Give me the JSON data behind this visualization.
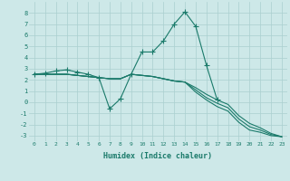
{
  "xlabel": "Humidex (Indice chaleur)",
  "x": [
    0,
    1,
    2,
    3,
    4,
    5,
    6,
    7,
    8,
    9,
    10,
    11,
    12,
    13,
    14,
    15,
    16,
    17,
    18,
    19,
    20,
    21,
    22,
    23
  ],
  "line1": [
    2.5,
    2.6,
    2.8,
    2.9,
    2.7,
    2.5,
    2.2,
    -0.6,
    0.3,
    2.5,
    4.5,
    4.5,
    5.5,
    7.0,
    8.1,
    6.8,
    3.3,
    0.2,
    null,
    null,
    null,
    null,
    null,
    null
  ],
  "line2": [
    2.5,
    2.5,
    2.5,
    2.5,
    2.4,
    2.3,
    2.2,
    2.1,
    2.1,
    2.5,
    2.4,
    2.3,
    2.1,
    1.9,
    1.8,
    1.3,
    0.7,
    0.2,
    -0.2,
    -1.2,
    -1.9,
    -2.3,
    -2.8,
    -3.1
  ],
  "line3": [
    2.5,
    2.5,
    2.5,
    2.5,
    2.4,
    2.3,
    2.2,
    2.1,
    2.1,
    2.5,
    2.4,
    2.3,
    2.1,
    1.9,
    1.8,
    1.1,
    0.4,
    -0.1,
    -0.5,
    -1.5,
    -2.2,
    -2.5,
    -2.9,
    -3.1
  ],
  "line4": [
    2.5,
    2.5,
    2.5,
    2.5,
    2.4,
    2.3,
    2.2,
    2.1,
    2.1,
    2.5,
    2.4,
    2.3,
    2.1,
    1.9,
    1.8,
    0.9,
    0.2,
    -0.4,
    -0.8,
    -1.8,
    -2.5,
    -2.7,
    -3.0,
    -3.1
  ],
  "color": "#1a7a6a",
  "bg_color": "#cde8e8",
  "grid_color": "#aacfcf",
  "ylim": [
    -3.5,
    9.0
  ],
  "xlim": [
    -0.5,
    23.5
  ],
  "yticks": [
    -3,
    -2,
    -1,
    0,
    1,
    2,
    3,
    4,
    5,
    6,
    7,
    8
  ],
  "xticks": [
    0,
    1,
    2,
    3,
    4,
    5,
    6,
    7,
    8,
    9,
    10,
    11,
    12,
    13,
    14,
    15,
    16,
    17,
    18,
    19,
    20,
    21,
    22,
    23
  ],
  "markersize": 3,
  "linewidth": 0.8
}
